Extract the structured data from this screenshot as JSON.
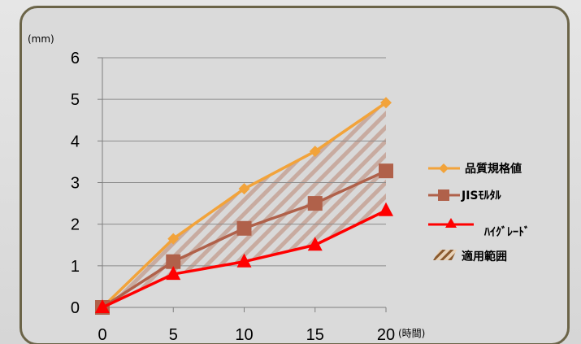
{
  "chart_data": {
    "type": "line",
    "x": [
      0,
      5,
      10,
      15,
      20
    ],
    "x_ticks": [
      "0",
      "5",
      "10",
      "15",
      "20"
    ],
    "y_ticks": [
      "0",
      "1",
      "2",
      "3",
      "4",
      "5",
      "6"
    ],
    "xlim": [
      0,
      20
    ],
    "ylim": [
      0,
      6
    ],
    "xlabel": "(時間)",
    "ylabel": "(mm)",
    "grid": "horizontal",
    "legend_position": "right",
    "series": [
      {
        "name": "品質規格値",
        "values": [
          0,
          1.65,
          2.85,
          3.75,
          4.92
        ],
        "color": "#f2a33a",
        "marker": "diamond"
      },
      {
        "name": "JISﾓﾙﾀﾙ",
        "values": [
          0,
          1.1,
          1.9,
          2.5,
          3.28
        ],
        "color": "#b0614a",
        "marker": "square"
      },
      {
        "name": "ﾊｲｸﾞﾚｰﾄﾞ",
        "values": [
          0,
          0.8,
          1.1,
          1.5,
          2.33
        ],
        "color": "#ff0000",
        "marker": "triangle"
      }
    ],
    "area": {
      "name": "適用範囲",
      "color": "#a07a5a"
    }
  }
}
